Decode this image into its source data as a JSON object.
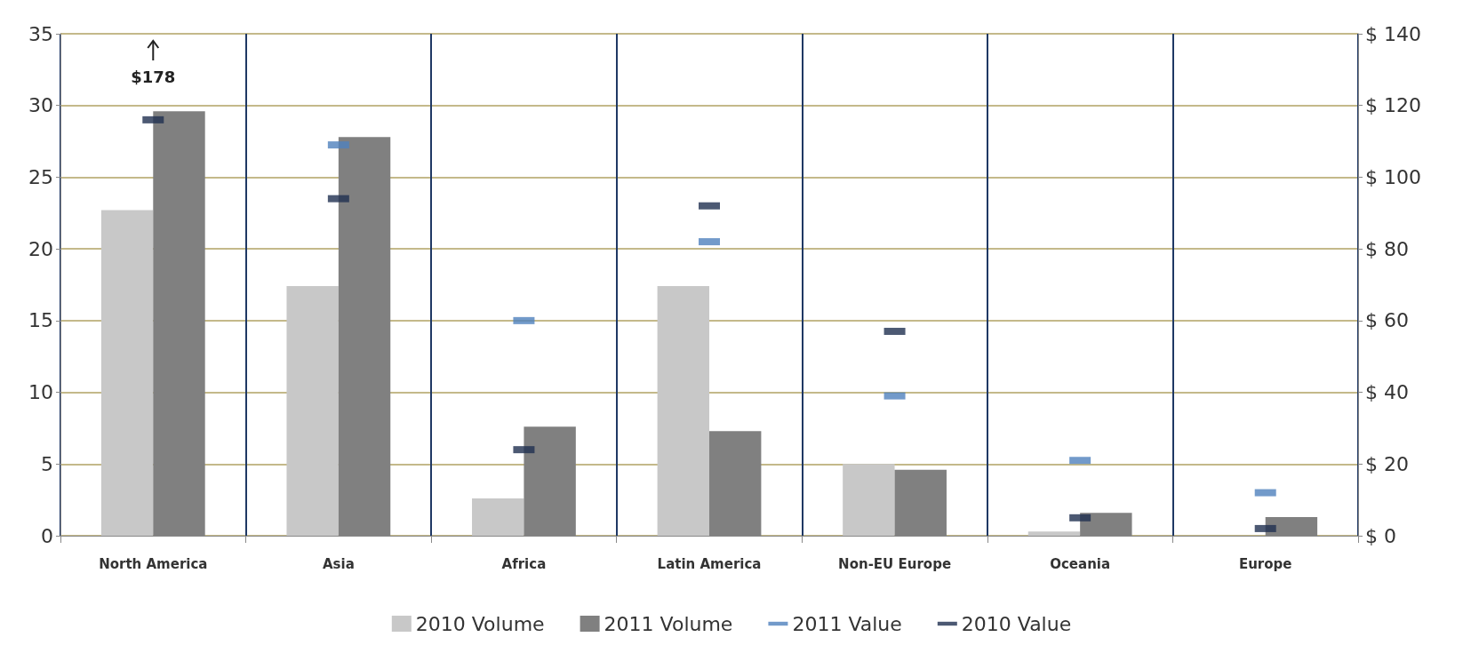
{
  "chart_data": {
    "type": "bar",
    "categories": [
      "North America",
      "Asia",
      "Africa",
      "Latin America",
      "Non-EU Europe",
      "Oceania",
      "Europe"
    ],
    "series": [
      {
        "name": "2010 Volume",
        "color": "#c8c8c8",
        "values": [
          22.7,
          17.4,
          2.6,
          17.4,
          5.0,
          0.3,
          null
        ]
      },
      {
        "name": "2011 Volume",
        "color": "#808080",
        "values": [
          29.6,
          27.8,
          7.6,
          7.3,
          4.6,
          1.6,
          1.3
        ]
      },
      {
        "name": "2011 Value",
        "type": "scatter",
        "axis": "y2",
        "color": "#4f81bd",
        "values": [
          null,
          109,
          60,
          82,
          39,
          21,
          12
        ]
      },
      {
        "name": "2010 Value",
        "type": "scatter",
        "axis": "y2",
        "color": "#1f3050",
        "values": [
          116,
          94,
          24,
          92,
          57,
          5,
          2
        ]
      }
    ],
    "ylim": [
      0,
      35
    ],
    "yticks": [
      0,
      5,
      10,
      15,
      20,
      25,
      30,
      35
    ],
    "y2lim": [
      0,
      140
    ],
    "y2ticks": [
      {
        "value": 0,
        "label": "$ 0"
      },
      {
        "value": 20,
        "label": "$ 20"
      },
      {
        "value": 40,
        "label": "$ 40"
      },
      {
        "value": 60,
        "label": "$ 60"
      },
      {
        "value": 80,
        "label": "$ 80"
      },
      {
        "value": 100,
        "label": "$ 100"
      },
      {
        "value": 120,
        "label": "$ 120"
      },
      {
        "value": 140,
        "label": "$ 140"
      }
    ],
    "annotations": [
      "$178"
    ],
    "grid": true,
    "legend": "bottom"
  }
}
